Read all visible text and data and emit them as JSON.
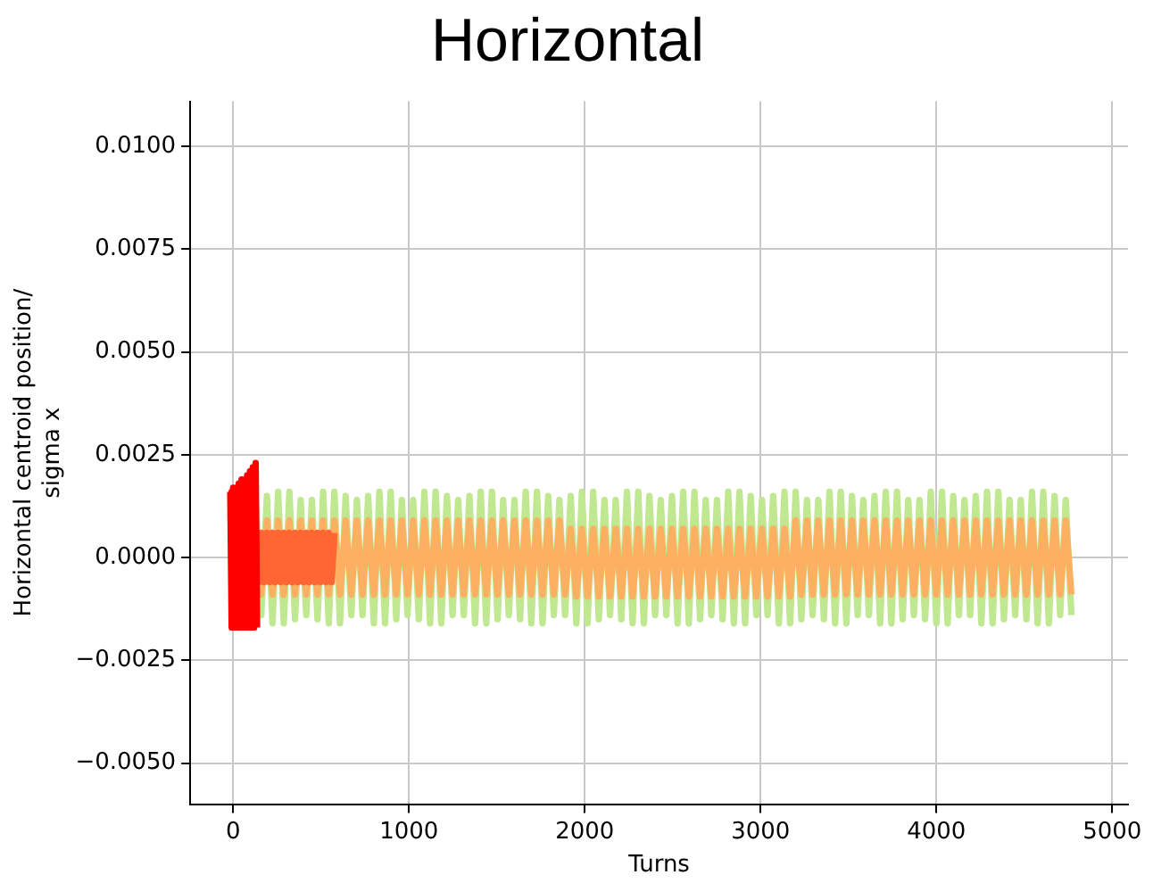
{
  "chart_data": {
    "type": "line",
    "title": "Horizontal",
    "xlabel": "Turns",
    "ylabel": "Horizontal centroid position/\nsigma x",
    "xlim": [
      -244,
      5090
    ],
    "xticks": [
      0,
      1000,
      2000,
      3000,
      4000,
      5000
    ],
    "ylim": [
      -0.006,
      0.0111
    ],
    "yticks": [
      {
        "value": -0.005,
        "label": "−0.0050"
      },
      {
        "value": -0.0025,
        "label": "−0.0025"
      },
      {
        "value": 0,
        "label": "0.0000"
      },
      {
        "value": 0.0025,
        "label": "0.0025"
      },
      {
        "value": 0.005,
        "label": "0.0050"
      },
      {
        "value": 0.0075,
        "label": "0.0075"
      },
      {
        "value": 0.01,
        "label": "0.0100"
      }
    ],
    "grid": true,
    "legend": false,
    "marker": "none",
    "line_style": "solid",
    "x": [
      128,
      160,
      192,
      224,
      256,
      288,
      320,
      352,
      384,
      416,
      448,
      480,
      512,
      544,
      576,
      608,
      640,
      672,
      704,
      736,
      768,
      800,
      832,
      864,
      896,
      928,
      960,
      992,
      1024,
      1056,
      1088,
      1120,
      1152,
      1184,
      1216,
      1248,
      1280,
      1312,
      1344,
      1376,
      1408,
      1440,
      1472,
      1504,
      1536,
      1568,
      1600,
      1632,
      1664,
      1696,
      1728,
      1760,
      1792,
      1824,
      1856,
      1888,
      1920,
      1952,
      1984,
      2016,
      2048,
      2080,
      2112,
      2144,
      2176,
      2208,
      2240,
      2272,
      2304,
      2336,
      2368,
      2400,
      2432,
      2464,
      2496,
      2528,
      2560,
      2592,
      2624,
      2656,
      2688,
      2720,
      2752,
      2784,
      2816,
      2848,
      2880,
      2912,
      2944,
      2976,
      3008,
      3040,
      3072,
      3104,
      3136,
      3168,
      3200,
      3232,
      3264,
      3296,
      3328,
      3360,
      3392,
      3424,
      3456,
      3488,
      3520,
      3552,
      3584,
      3616,
      3648,
      3680,
      3712,
      3744,
      3776,
      3808,
      3840,
      3872,
      3904,
      3936,
      3968,
      4000,
      4032,
      4064,
      4096,
      4128,
      4160,
      4192,
      4224,
      4256,
      4288,
      4320,
      4352,
      4384,
      4416,
      4448,
      4480,
      4512,
      4544,
      4576,
      4608,
      4640,
      4672,
      4704,
      4736,
      4768
    ],
    "series": [
      {
        "color": "#c0e890",
        "values": [
          0.0014,
          -0.0014,
          0.0015,
          -0.0016,
          0.0016,
          -0.0016,
          0.0016,
          -0.0015,
          0.0014,
          -0.0014,
          0.0014,
          -0.0015,
          0.0016,
          -0.0016,
          0.0016,
          -0.0016,
          0.0015,
          -0.0014,
          0.0014,
          -0.0014,
          0.0015,
          -0.0016,
          0.0016,
          -0.0016,
          0.0016,
          -0.0015,
          0.0014,
          -0.0014,
          0.0014,
          -0.0015,
          0.0016,
          -0.0016,
          0.0016,
          -0.0016,
          0.0015,
          -0.0014,
          0.0014,
          -0.0014,
          0.0015,
          -0.0016,
          0.0016,
          -0.0016,
          0.0016,
          -0.0015,
          0.0014,
          -0.0014,
          0.0014,
          -0.0015,
          0.0016,
          -0.0016,
          0.0016,
          -0.0016,
          0.0015,
          -0.0014,
          0.0014,
          -0.0014,
          0.0015,
          -0.0016,
          0.0016,
          -0.0016,
          0.0016,
          -0.0015,
          0.0014,
          -0.0014,
          0.0014,
          -0.0015,
          0.0016,
          -0.0016,
          0.0016,
          -0.0016,
          0.0015,
          -0.0014,
          0.0014,
          -0.0014,
          0.0015,
          -0.0016,
          0.0016,
          -0.0016,
          0.0016,
          -0.0015,
          0.0014,
          -0.0014,
          0.0014,
          -0.0015,
          0.0016,
          -0.0016,
          0.0016,
          -0.0016,
          0.0015,
          -0.0014,
          0.0014,
          -0.0014,
          0.0015,
          -0.0016,
          0.0016,
          -0.0016,
          0.0016,
          -0.0015,
          0.0014,
          -0.0014,
          0.0014,
          -0.0015,
          0.0016,
          -0.0016,
          0.0016,
          -0.0016,
          0.0015,
          -0.0014,
          0.0014,
          -0.0014,
          0.0015,
          -0.0016,
          0.0016,
          -0.0016,
          0.0016,
          -0.0015,
          0.0014,
          -0.0014,
          0.0014,
          -0.0015,
          0.0016,
          -0.0016,
          0.0016,
          -0.0016,
          0.0015,
          -0.0014,
          0.0014,
          -0.0014,
          0.0015,
          -0.0016,
          0.0016,
          -0.0016,
          0.0016,
          -0.0015,
          0.0014,
          -0.0014,
          0.0014,
          -0.0015,
          0.0016,
          -0.0016,
          0.0016,
          -0.0016,
          0.0015,
          -0.0014,
          0.0014,
          -0.0014
        ]
      },
      {
        "color": "#fdb062",
        "values": [
          0.0009,
          -0.0009,
          0.0009,
          -0.0009,
          0.0009,
          -0.0009,
          0.0009,
          -0.0009,
          0.0009,
          -0.0009,
          0.0009,
          -0.0009,
          0.0009,
          -0.0009,
          0.0009,
          -0.0009,
          0.0009,
          -0.0009,
          0.0009,
          -0.0009,
          0.0009,
          -0.0009,
          0.0009,
          -0.0009,
          0.0009,
          -0.0009,
          0.0009,
          -0.0009,
          0.0009,
          -0.0009,
          0.0009,
          -0.0009,
          0.0009,
          -0.0009,
          0.0009,
          -0.0009,
          0.0009,
          -0.0009,
          0.0009,
          -0.0009,
          0.0009,
          -0.0009,
          0.0009,
          -0.0009,
          0.0009,
          -0.0009,
          0.0009,
          -0.0009,
          0.0009,
          -0.0009,
          0.0009,
          -0.0009,
          0.0009,
          -0.0009,
          0.0009,
          -0.0009,
          0.0007,
          -0.00095,
          0.0007,
          -0.00095,
          0.0007,
          -0.00095,
          0.0007,
          -0.00095,
          0.0007,
          -0.00095,
          0.0007,
          -0.00095,
          0.0007,
          -0.00095,
          0.0007,
          -0.00095,
          0.0007,
          -0.00095,
          0.0007,
          -0.00095,
          0.0007,
          -0.00095,
          0.0007,
          -0.00095,
          0.0007,
          -0.00095,
          0.0007,
          -0.00095,
          0.0007,
          -0.00095,
          0.0007,
          -0.00095,
          0.0007,
          -0.00095,
          0.0007,
          -0.00095,
          0.0007,
          -0.00095,
          0.0007,
          -0.00095,
          0.0009,
          -0.0009,
          0.0009,
          -0.0009,
          0.0009,
          -0.0009,
          0.0009,
          -0.0009,
          0.0009,
          -0.0009,
          0.0009,
          -0.0009,
          0.0009,
          -0.0009,
          0.0009,
          -0.0009,
          0.0009,
          -0.0009,
          0.0009,
          -0.0009,
          0.0009,
          -0.0009,
          0.0009,
          -0.0009,
          0.0009,
          -0.0009,
          0.0009,
          -0.0009,
          0.0009,
          -0.0009,
          0.0009,
          -0.0009,
          0.0009,
          -0.0009,
          0.0009,
          -0.0009,
          0.0009,
          -0.0009,
          0.0009,
          -0.0009,
          0.0009,
          -0.0009,
          0.0009,
          -0.0009,
          0.0009,
          -0.0009,
          0.0009,
          -0.0009,
          0.0009,
          -0.0009
        ]
      },
      {
        "color": "#ff6633",
        "x": [
          0,
          16,
          32,
          48,
          64,
          80,
          96,
          112,
          128,
          144,
          160,
          176,
          192,
          208,
          224,
          240,
          256,
          272,
          288,
          304,
          320,
          336,
          352,
          368,
          384,
          400,
          416,
          432,
          448,
          464,
          480,
          496,
          512,
          528,
          544,
          560,
          576
        ],
        "values": [
          0.0006,
          -0.0006,
          0.0006,
          -0.0006,
          0.0006,
          -0.0006,
          0.0006,
          -0.0006,
          0.0006,
          -0.0006,
          0.0006,
          -0.0006,
          0.0006,
          -0.0006,
          0.0006,
          -0.0006,
          0.0006,
          -0.0006,
          0.0006,
          -0.0006,
          0.0006,
          -0.0006,
          0.0006,
          -0.0006,
          0.0006,
          -0.0006,
          0.0006,
          -0.0006,
          0.0006,
          -0.0006,
          0.0006,
          -0.0006,
          0.0006,
          -0.0006,
          0.0006,
          -0.0006,
          0.0006
        ]
      },
      {
        "color": "#ff0000",
        "x": [
          -16,
          -8,
          0,
          8,
          16,
          24,
          32,
          40,
          48,
          56,
          64,
          72,
          80,
          88,
          96,
          104,
          112,
          120,
          128,
          136
        ],
        "values": [
          0.0016,
          -0.0017,
          0.0017,
          -0.0017,
          0.0017,
          -0.0017,
          0.0018,
          -0.0017,
          0.0019,
          -0.0017,
          0.0019,
          -0.0017,
          0.002,
          -0.0017,
          0.0021,
          -0.0017,
          0.0022,
          -0.0017,
          0.0023,
          -0.0017
        ]
      }
    ]
  }
}
